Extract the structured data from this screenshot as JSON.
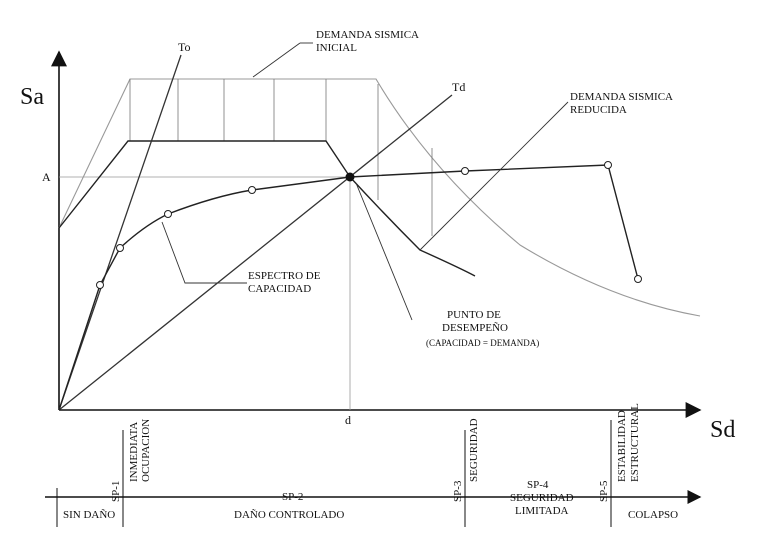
{
  "axes": {
    "y_label": "Sa",
    "x_label": "Sd",
    "a_tick": "A",
    "d_tick": "d"
  },
  "lines": {
    "to": "To",
    "td": "Td"
  },
  "annotations": {
    "initial_demand": [
      "DEMANDA SISMICA",
      "INICIAL"
    ],
    "reduced_demand": [
      "DEMANDA SISMICA",
      "REDUCIDA"
    ],
    "capacity_spectrum": [
      "ESPECTRO DE",
      "CAPACIDAD"
    ],
    "performance_point": [
      "PUNTO DE",
      "DESEMPEÑO"
    ],
    "performance_note": "(CAPACIDAD = DEMANDA)"
  },
  "performance_levels": {
    "sp1_vertical": [
      "INMEDIATA",
      "OCUPACION"
    ],
    "sp3_vertical": "SEGURIDAD",
    "sp5_vertical": [
      "ESTABILIDAD",
      "ESTRUCTURAL"
    ],
    "sp1": "SP-1",
    "sp2": "SP-2",
    "sp3": "SP-3",
    "sp4": "SP-4",
    "sp5": "SP-5",
    "sin_dano": "SIN DAÑO",
    "dano_controlado": "DAÑO CONTROLADO",
    "seguridad_limitada": [
      "SEGURIDAD",
      "LIMITADA"
    ],
    "colapso": "COLAPSO"
  }
}
